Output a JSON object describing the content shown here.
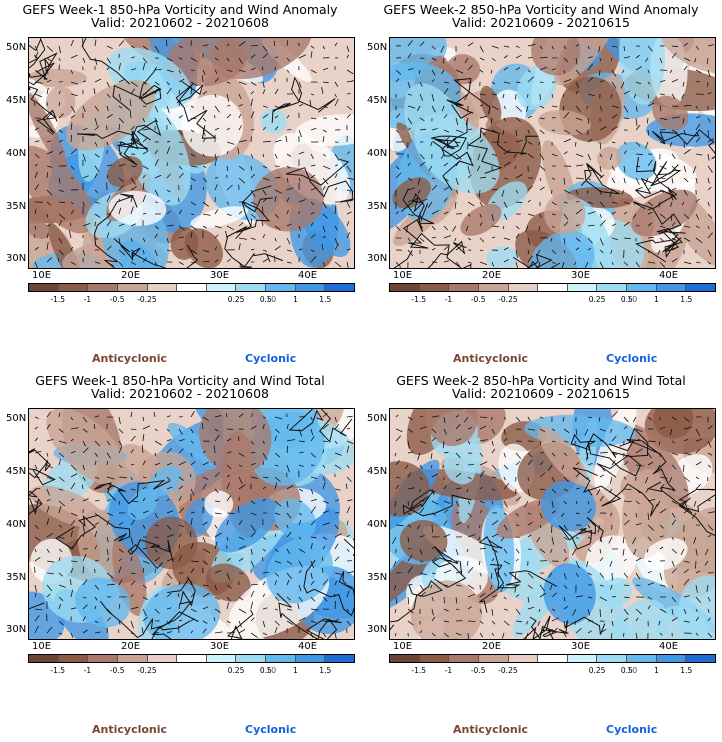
{
  "panels": [
    {
      "title_line1": "GEFS Week-1 850-hPa Vorticity and Wind Anomaly",
      "title_line2": "Valid: 20210602 - 20210608"
    },
    {
      "title_line1": "GEFS Week-2 850-hPa Vorticity and Wind Anomaly",
      "title_line2": "Valid: 20210609 - 20210615"
    },
    {
      "title_line1": "GEFS Week-1 850-hPa Vorticity and Wind Total",
      "title_line2": "Valid: 20210602 - 20210608"
    },
    {
      "title_line1": "GEFS Week-2 850-hPa Vorticity and Wind Total",
      "title_line2": "Valid: 20210609 - 20210615"
    }
  ],
  "lat_labels": [
    "50N",
    "45N",
    "40N",
    "35N",
    "30N"
  ],
  "lon_labels": [
    "10E",
    "20E",
    "30E",
    "40E"
  ],
  "colorbar": {
    "labels": [
      "-1.5",
      "-1",
      "-0.5",
      "-0.25",
      "0.25",
      "0.5",
      "1",
      "1.5"
    ],
    "multiplier": "10",
    "colors": [
      "#6e4434",
      "#8c5a45",
      "#a9786a",
      "#c9a494",
      "#e6d0c6",
      "#ffffff",
      "#cdf3fb",
      "#9ddcf2",
      "#63b9ee",
      "#3f97e6",
      "#1f6ed8"
    ]
  },
  "legend": {
    "anticyclonic": "Anticyclonic",
    "cyclonic": "Cyclonic"
  }
}
